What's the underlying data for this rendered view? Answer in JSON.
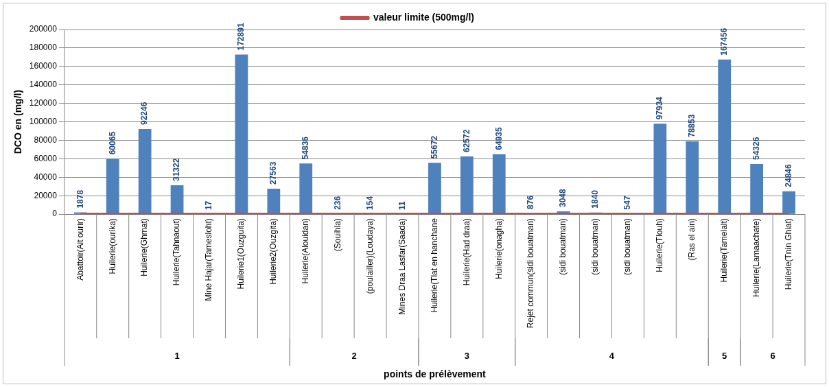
{
  "chart_data": {
    "type": "bar",
    "xlabel": "points de prélèvement",
    "ylabel": "DCO en (mg/l)",
    "categories": [
      "Abattoir(Ait ourir)",
      "Huilerie(ourika)",
      "Huilerie(Ghmat)",
      "Huilerie(Tahnaout)",
      "Mine Hajar(Tamesloht)",
      "Huilerie1(Ouzguita)",
      "Huilerie2(Ouzgita)",
      "Huilerie(Alouidan)",
      "(Souihla)",
      "(poulailler)(Loudaya)",
      "Mines Draa Lasfar(Saada)",
      "Huilerie(Tlat en hanchane",
      "Huilerie(Had draa)",
      "Huilerie(onagha)",
      "Rejet commun(sidi bouatman)",
      "(sidi bouatman)",
      "(sidi bouatman)",
      "(sidi bouatman)",
      "Huilerie(Tlouh)",
      "(Ras el ain)",
      "Huilerie(Tamelalt)",
      "Huilerie(Lamaachate)",
      "Huilerie(Tnin Ghiat)"
    ],
    "series": [
      {
        "color": "#4f81bd",
        "values": [
          1878,
          60065,
          92246,
          31322,
          17,
          172891,
          27563,
          54836,
          236,
          154,
          11,
          55672,
          62572,
          64935,
          876,
          3048,
          1840,
          547,
          97934,
          78853,
          167456,
          54326,
          24846
        ],
        "value_labels": [
          "1878",
          "60065",
          "92246",
          "31322",
          "17",
          "172891",
          "27563",
          "54836",
          "236",
          "154",
          "11",
          "55672",
          "62572",
          "64935",
          "876",
          "3048",
          "1840",
          "547",
          "97934",
          "78853",
          "167456",
          "54326",
          "24846"
        ]
      },
      {
        "name": "valeur limite (500mg/l)",
        "type": "line",
        "color": "#c0504d",
        "values": [
          500,
          500,
          500,
          500,
          500,
          500,
          500,
          500,
          500,
          500,
          500,
          500,
          500,
          500,
          500,
          500,
          500,
          500,
          500,
          500,
          500,
          500,
          500
        ]
      }
    ],
    "ylim": [
      0,
      200000
    ],
    "yticks": [
      0,
      20000,
      40000,
      60000,
      80000,
      100000,
      120000,
      140000,
      160000,
      180000,
      200000
    ],
    "grid": "y",
    "legend": "top",
    "marker": "none",
    "annotations": [
      "1",
      "2",
      "3",
      "4",
      "5",
      "6"
    ]
  }
}
